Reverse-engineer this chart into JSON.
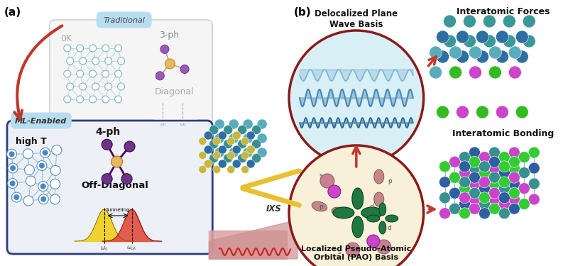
{
  "panel_a_label": "(a)",
  "panel_b_label": "(b)",
  "traditional_label": "Traditional",
  "ml_enabled_label": "ML-Enabled",
  "ph3_label": "3-ph",
  "ph4_label": "4-ph",
  "high_T_label": "high T",
  "zero_K_label": "0K",
  "diagonal_label": "Diagonal",
  "off_diagonal_label": "Off-Diagonal",
  "tunneling_label": "tunneling",
  "IXS_label": "IXS",
  "delocalized_label": "Delocalized Plane\nWave Basis",
  "localized_label": "Localized Pseudo-Atomic\nOrbital (PAO) Basis",
  "interatomic_forces_label": "Interatomic Forces",
  "interatomic_bonding_label": "Interatomic Bonding",
  "bg_color": "#ffffff",
  "trad_box_fc": "#f5f5f5",
  "trad_box_ec": "#cccccc",
  "ml_box_fc": "#eef0f8",
  "ml_box_ec": "#2c3e7a",
  "trad_tag_fc": "#b8ddf0",
  "ml_tag_fc": "#b8ddf0",
  "arrow_red": "#c0392b",
  "ph3_center": "#e8b860",
  "ph3_outer": "#9b59b6",
  "ph3_line": "#aaaaaa",
  "ph4_center": "#e8b860",
  "ph4_outer": "#6c3483",
  "ph4_line": "#4a0070",
  "diag_color": "#aaaaaa",
  "gauss_yellow": "#f0d020",
  "gauss_red": "#e05040",
  "atom_0K_fc": "#ffffff",
  "atom_0K_ec": "#7ab5c5",
  "atom_highT_fc": "#ffffff",
  "atom_highT_ec": "#5590c0",
  "atom_highT_fill": "#4488cc",
  "bond_0K": "#90c5d5",
  "bond_highT": "#5090c0",
  "platform_fc": "#e8b0b0",
  "platform_ec": "#d09090",
  "crystal_colors": [
    "#2e86c1",
    "#3ab0a0",
    "#5ba0c0",
    "#7dbfd0"
  ],
  "crystal_yellow": "#c8b840",
  "delocalized_circle_fc": "#d8f0f5",
  "delocalized_circle_ec": "#8b1a1a",
  "localized_circle_fc": "#f8f0d8",
  "localized_circle_ec": "#8b1a1a",
  "wave_blue": "#4a90c0",
  "wave_fill1": "#a0c8e0",
  "wave_fill2": "#7ab0d0",
  "orbital_s_fc": "#cc88aa",
  "orbital_s_ec": "#aa4488",
  "orbital_p_fc": "#c09090",
  "orbital_p_ec": "#904040",
  "orbital_d_fc": "#1e7840",
  "orbital_d_ec": "#0a4020",
  "orbital_purple": "#cc44cc",
  "if_atom1": "#2e6fa3",
  "if_atom2": "#3a9090",
  "if_atom3": "#5aacbc",
  "if_green": "#44cc22",
  "if_purple": "#cc44cc",
  "ib_atom_blue": "#2e5fa0",
  "ib_atom_teal": "#3a9898",
  "ib_atom_green": "#33cc33",
  "ib_atom_purple": "#bb33bb",
  "ib_bond": "#4a9090"
}
